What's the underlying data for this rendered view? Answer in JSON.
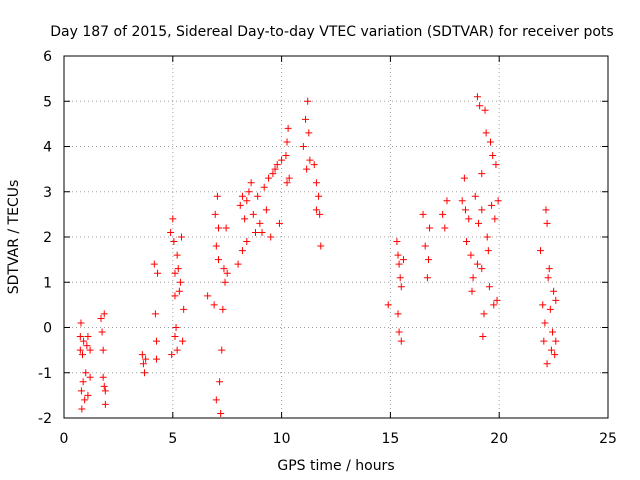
{
  "chart_data": {
    "type": "scatter",
    "title": "Day 187 of 2015, Sidereal Day-to-day VTEC variation (SDTVAR) for receiver pots",
    "xlabel": "GPS time / hours",
    "ylabel": "SDTVAR / TECUs",
    "xlim": [
      0,
      25
    ],
    "ylim": [
      -2,
      6
    ],
    "xticks": [
      "0",
      "5",
      "10",
      "15",
      "20",
      "25"
    ],
    "yticks": [
      "-2",
      "-1",
      "0",
      "1",
      "2",
      "3",
      "4",
      "5",
      "6"
    ],
    "grid": true,
    "marker": "+",
    "color": "#ff0000",
    "series": [
      {
        "name": "SDTVAR",
        "points": [
          [
            0.75,
            -0.2
          ],
          [
            0.75,
            -0.5
          ],
          [
            0.78,
            0.1
          ],
          [
            0.8,
            -1.4
          ],
          [
            0.82,
            -1.8
          ],
          [
            0.85,
            -0.6
          ],
          [
            0.88,
            -1.2
          ],
          [
            0.9,
            -0.3
          ],
          [
            0.95,
            -1.6
          ],
          [
            1.0,
            -1.0
          ],
          [
            1.05,
            -0.4
          ],
          [
            1.1,
            -1.5
          ],
          [
            1.1,
            -0.2
          ],
          [
            1.2,
            -1.1
          ],
          [
            1.2,
            -0.5
          ],
          [
            1.7,
            0.2
          ],
          [
            1.75,
            -0.1
          ],
          [
            1.8,
            -0.5
          ],
          [
            1.8,
            -1.1
          ],
          [
            1.85,
            -1.3
          ],
          [
            1.9,
            -1.7
          ],
          [
            1.9,
            -1.4
          ],
          [
            1.85,
            0.3
          ],
          [
            3.6,
            -0.6
          ],
          [
            3.65,
            -0.8
          ],
          [
            3.7,
            -1.0
          ],
          [
            3.75,
            -0.7
          ],
          [
            4.15,
            1.4
          ],
          [
            4.2,
            0.3
          ],
          [
            4.25,
            -0.3
          ],
          [
            4.25,
            -0.7
          ],
          [
            4.3,
            1.2
          ],
          [
            4.9,
            2.1
          ],
          [
            5.0,
            2.4
          ],
          [
            5.05,
            1.9
          ],
          [
            5.1,
            1.2
          ],
          [
            5.1,
            0.7
          ],
          [
            5.15,
            0.0
          ],
          [
            5.2,
            -0.5
          ],
          [
            5.25,
            1.3
          ],
          [
            5.3,
            0.8
          ],
          [
            5.35,
            1.0
          ],
          [
            5.4,
            2.0
          ],
          [
            5.45,
            -0.3
          ],
          [
            5.5,
            0.4
          ],
          [
            4.95,
            -0.6
          ],
          [
            5.1,
            -0.2
          ],
          [
            5.2,
            1.6
          ],
          [
            6.6,
            0.7
          ],
          [
            6.9,
            0.5
          ],
          [
            6.95,
            2.5
          ],
          [
            7.0,
            1.8
          ],
          [
            7.05,
            2.9
          ],
          [
            7.1,
            2.2
          ],
          [
            7.15,
            -1.2
          ],
          [
            7.2,
            -1.9
          ],
          [
            7.25,
            -0.5
          ],
          [
            7.3,
            0.4
          ],
          [
            7.35,
            1.3
          ],
          [
            7.4,
            1.0
          ],
          [
            7.45,
            2.2
          ],
          [
            7.5,
            1.2
          ],
          [
            7.0,
            -1.6
          ],
          [
            7.1,
            1.5
          ],
          [
            8.1,
            2.7
          ],
          [
            8.2,
            2.9
          ],
          [
            8.3,
            2.4
          ],
          [
            8.4,
            2.8
          ],
          [
            8.5,
            3.0
          ],
          [
            8.6,
            3.2
          ],
          [
            8.7,
            2.5
          ],
          [
            8.8,
            2.1
          ],
          [
            8.9,
            2.9
          ],
          [
            9.0,
            2.3
          ],
          [
            9.1,
            2.1
          ],
          [
            9.2,
            3.1
          ],
          [
            9.3,
            2.6
          ],
          [
            9.4,
            3.3
          ],
          [
            9.5,
            2.0
          ],
          [
            9.6,
            3.4
          ],
          [
            9.7,
            3.5
          ],
          [
            9.8,
            3.6
          ],
          [
            9.9,
            2.3
          ],
          [
            10.0,
            3.7
          ],
          [
            8.2,
            1.7
          ],
          [
            8.0,
            1.4
          ],
          [
            8.4,
            1.9
          ],
          [
            10.2,
            3.8
          ],
          [
            10.25,
            4.1
          ],
          [
            10.3,
            4.4
          ],
          [
            10.35,
            3.3
          ],
          [
            10.25,
            3.2
          ],
          [
            11.0,
            4.0
          ],
          [
            11.1,
            4.6
          ],
          [
            11.2,
            5.0
          ],
          [
            11.25,
            4.3
          ],
          [
            11.3,
            3.7
          ],
          [
            11.15,
            3.5
          ],
          [
            11.5,
            3.6
          ],
          [
            11.6,
            3.2
          ],
          [
            11.7,
            2.9
          ],
          [
            11.75,
            2.5
          ],
          [
            11.8,
            1.8
          ],
          [
            11.6,
            2.6
          ],
          [
            14.9,
            0.5
          ],
          [
            15.3,
            1.9
          ],
          [
            15.35,
            1.6
          ],
          [
            15.4,
            1.4
          ],
          [
            15.45,
            1.1
          ],
          [
            15.5,
            0.9
          ],
          [
            15.35,
            0.3
          ],
          [
            15.4,
            -0.1
          ],
          [
            15.5,
            -0.3
          ],
          [
            15.6,
            1.5
          ],
          [
            16.5,
            2.5
          ],
          [
            16.6,
            1.8
          ],
          [
            16.7,
            1.1
          ],
          [
            16.8,
            2.2
          ],
          [
            16.75,
            1.5
          ],
          [
            17.4,
            2.5
          ],
          [
            17.5,
            2.2
          ],
          [
            17.6,
            2.8
          ],
          [
            18.3,
            2.8
          ],
          [
            18.4,
            3.3
          ],
          [
            18.45,
            2.6
          ],
          [
            18.5,
            1.9
          ],
          [
            18.6,
            2.4
          ],
          [
            18.7,
            1.6
          ],
          [
            18.75,
            0.8
          ],
          [
            18.8,
            1.1
          ],
          [
            18.9,
            2.9
          ],
          [
            19.0,
            5.1
          ],
          [
            19.05,
            2.3
          ],
          [
            19.1,
            4.9
          ],
          [
            19.2,
            3.4
          ],
          [
            19.2,
            1.3
          ],
          [
            19.25,
            -0.2
          ],
          [
            19.3,
            0.3
          ],
          [
            19.35,
            4.8
          ],
          [
            19.4,
            4.3
          ],
          [
            19.45,
            2.0
          ],
          [
            19.5,
            1.7
          ],
          [
            19.55,
            0.9
          ],
          [
            19.6,
            4.1
          ],
          [
            19.65,
            2.7
          ],
          [
            19.7,
            3.8
          ],
          [
            19.75,
            0.5
          ],
          [
            19.8,
            2.4
          ],
          [
            19.85,
            3.6
          ],
          [
            19.9,
            0.6
          ],
          [
            19.95,
            2.8
          ],
          [
            19.0,
            1.4
          ],
          [
            19.2,
            2.6
          ],
          [
            21.9,
            1.7
          ],
          [
            22.0,
            0.5
          ],
          [
            22.05,
            -0.3
          ],
          [
            22.1,
            0.1
          ],
          [
            22.15,
            2.6
          ],
          [
            22.2,
            2.3
          ],
          [
            22.2,
            -0.8
          ],
          [
            22.25,
            1.1
          ],
          [
            22.3,
            1.3
          ],
          [
            22.35,
            0.4
          ],
          [
            22.4,
            -0.5
          ],
          [
            22.45,
            -0.1
          ],
          [
            22.5,
            0.8
          ],
          [
            22.55,
            -0.6
          ],
          [
            22.6,
            0.6
          ],
          [
            22.6,
            -0.3
          ]
        ]
      }
    ]
  }
}
